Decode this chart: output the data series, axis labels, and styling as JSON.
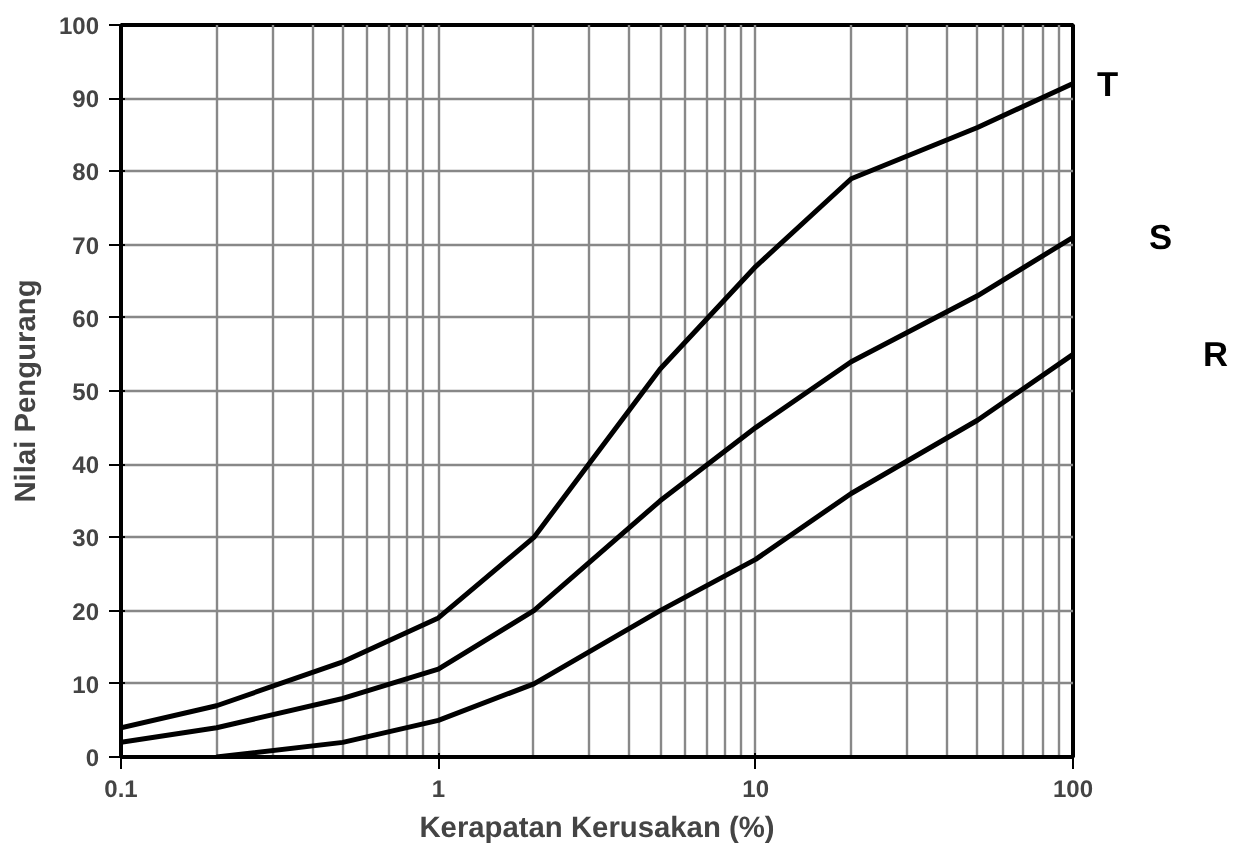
{
  "chart_data": {
    "type": "line",
    "xlabel": "Kerapatan Kerusakan (%)",
    "ylabel": "Nilai Pengurang",
    "log": "x",
    "grid": true,
    "line_style": "solid",
    "xlim": [
      0.1,
      100
    ],
    "xticks": [
      0.1,
      1,
      10,
      100
    ],
    "ylim": [
      0,
      100
    ],
    "yticks": [
      0,
      10,
      20,
      30,
      40,
      50,
      60,
      70,
      80,
      90,
      100
    ],
    "series": [
      {
        "name": "T",
        "color": "#000000",
        "x": [
          0.1,
          0.2,
          0.5,
          1,
          2,
          5,
          10,
          20,
          50,
          100
        ],
        "values": [
          4,
          7,
          13,
          19,
          30,
          53,
          67,
          79,
          86,
          92
        ]
      },
      {
        "name": "S",
        "color": "#000000",
        "x": [
          0.1,
          0.2,
          0.5,
          1,
          2,
          5,
          10,
          20,
          50,
          100
        ],
        "values": [
          2,
          4,
          8,
          12,
          20,
          35,
          45,
          54,
          63,
          71
        ]
      },
      {
        "name": "R",
        "color": "#000000",
        "x": [
          0.2,
          0.5,
          1,
          2,
          5,
          10,
          20,
          50,
          100
        ],
        "values": [
          0,
          2,
          5,
          10,
          20,
          27,
          36,
          46,
          55
        ]
      }
    ]
  }
}
